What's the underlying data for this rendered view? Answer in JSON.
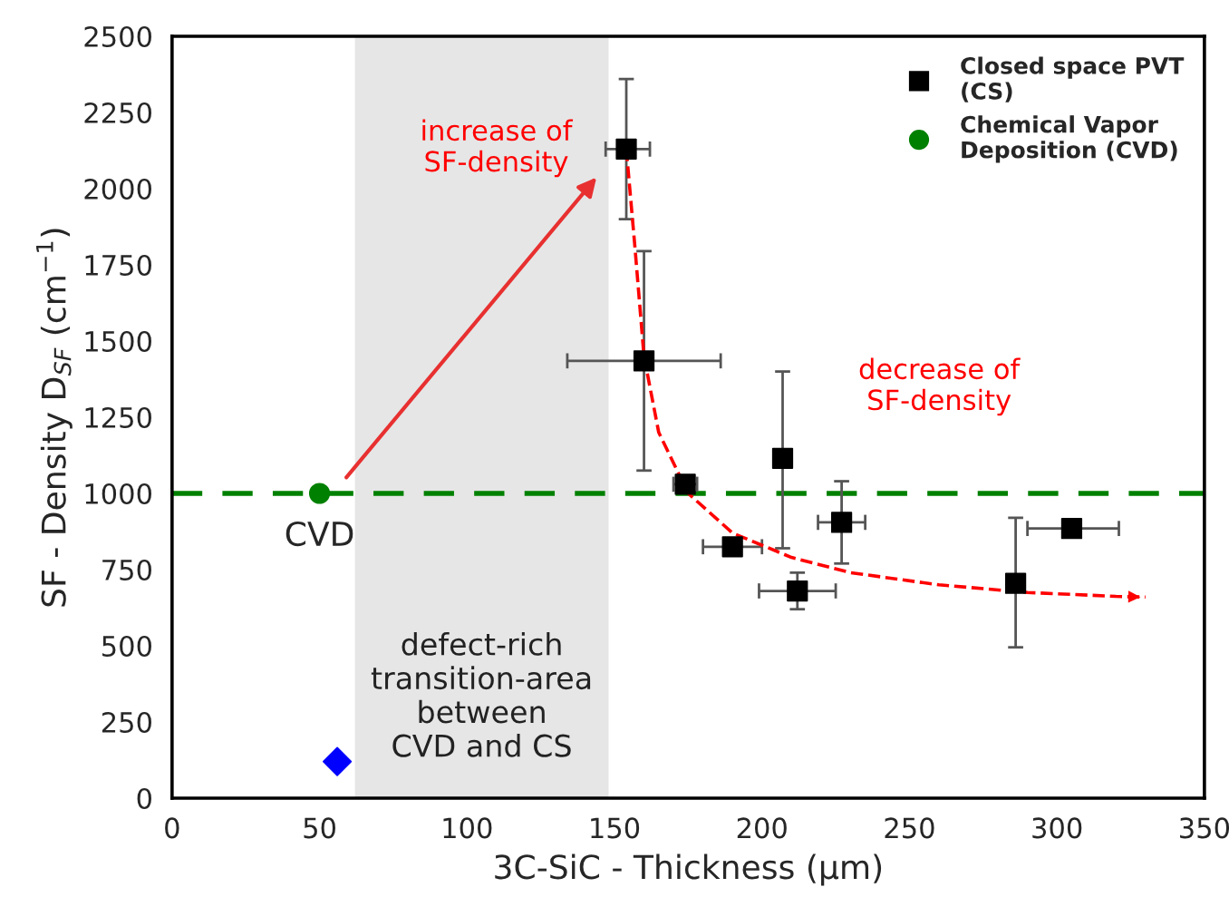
{
  "chart_data": {
    "type": "scatter",
    "xlabel": "3C-SiC - Thickness (µm)",
    "ylabel": "SF - Density D$_{SF}$ (cm$^{−1}$)",
    "xlim": [
      0,
      350
    ],
    "ylim": [
      0,
      2500
    ],
    "xticks": [
      0,
      50,
      100,
      150,
      200,
      250,
      300,
      350
    ],
    "yticks": [
      0,
      250,
      500,
      750,
      1000,
      1250,
      1500,
      1750,
      2000,
      2250,
      2500
    ],
    "legend": "top right",
    "grid": false,
    "series": [
      {
        "name": "Closed space PVT\n(CS)",
        "color": "#000000",
        "marker": "square",
        "x": [
          154,
          160,
          174,
          190,
          207,
          212,
          227,
          286,
          305
        ],
        "values": [
          2130,
          1435,
          1030,
          825,
          1115,
          680,
          905,
          705,
          885
        ],
        "errors": [
          [
            1900,
            2360
          ],
          [
            1075,
            1795
          ],
          null,
          null,
          [
            820,
            1400
          ],
          [
            620,
            740
          ],
          [
            770,
            1040
          ],
          [
            495,
            920
          ],
          null
        ],
        "xerrors": [
          [
            147,
            162
          ],
          [
            134,
            186
          ],
          [
            170,
            178
          ],
          [
            180,
            200
          ],
          null,
          [
            199,
            225
          ],
          [
            219,
            235
          ],
          null,
          [
            290,
            321
          ]
        ]
      },
      {
        "name": "Chemical Vapor\nDeposition (CVD)",
        "color": "#008000",
        "marker": "circle",
        "x": [
          50
        ],
        "values": [
          1000
        ]
      },
      {
        "color": "#0000ff",
        "marker": "diamond",
        "x": [
          56
        ],
        "values": [
          120
        ]
      },
      {
        "type": "line",
        "color": "#ff0000",
        "line_style": "dashed",
        "marker": "none",
        "x": [
          154,
          157,
          160,
          165,
          175,
          190,
          210,
          230,
          260,
          290,
          320,
          330
        ],
        "values": [
          2130,
          1800,
          1450,
          1200,
          1000,
          870,
          790,
          740,
          700,
          675,
          662,
          660
        ]
      }
    ],
    "ref_lines": [
      {
        "axis": "y",
        "value": 1000,
        "color": "#008000",
        "line_style": "dashed"
      }
    ],
    "bands": [
      {
        "axis": "x",
        "from": 62,
        "to": 148,
        "color": "#e6e6e6",
        "label": "defect-rich\ntransition-area\nbetween\nCVD and CS"
      }
    ],
    "annotations": [
      {
        "text": "CVD",
        "x": 50,
        "y": 1000
      },
      "increase of\nSF-density",
      "decrease of\nSF-density"
    ]
  }
}
